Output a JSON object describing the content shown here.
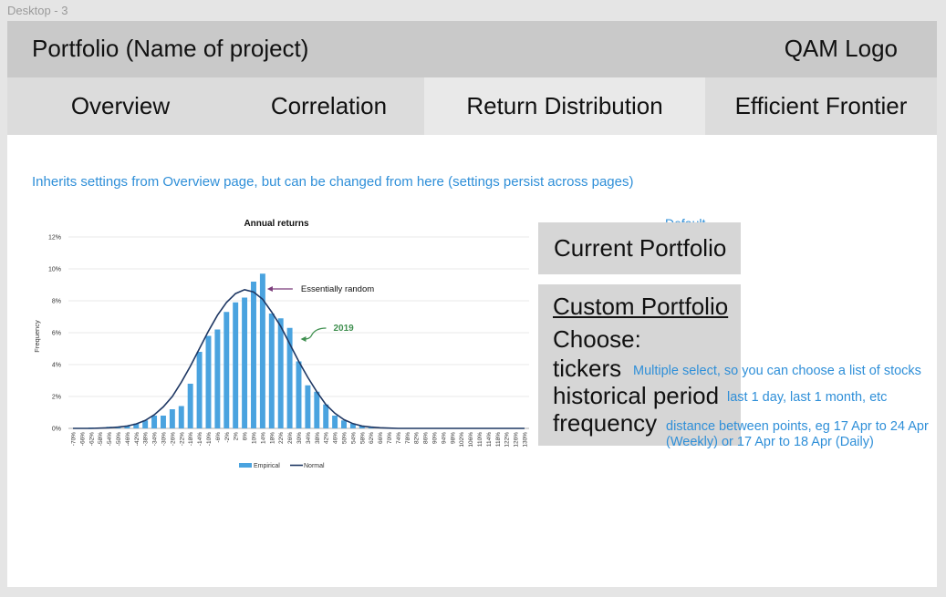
{
  "desktop_label": "Desktop - 3",
  "header": {
    "title": "Portfolio (Name of project)",
    "logo": "QAM Logo"
  },
  "tabs": [
    {
      "label": "Overview",
      "active": false
    },
    {
      "label": "Correlation",
      "active": false
    },
    {
      "label": "Return Distribution",
      "active": true
    },
    {
      "label": "Efficient Frontier",
      "active": false
    }
  ],
  "settings_note": "Inherits settings from Overview page, but can be changed from here (settings persist across pages)",
  "portfolio": {
    "default_note": "Default",
    "current_label": "Current Portfolio",
    "custom_title": "Custom Portfolio",
    "choose_label": "Choose:",
    "options": [
      {
        "label": "tickers",
        "hint": "Multiple select, so you can choose a list of stocks"
      },
      {
        "label": "historical period",
        "hint": "last 1 day, last 1 month, etc"
      },
      {
        "label": "frequency",
        "hint": "distance between points, eg 17 Apr to 24 Apr (Weekly) or 17 Apr to 18 Apr (Daily)"
      }
    ]
  },
  "colors": {
    "accent": "#2f8fd8",
    "bar": "#4aa3df",
    "normal_line": "#1f3864",
    "arrow1": "#7a3b7a",
    "arrow2": "#3f8f4f"
  },
  "chart_data": {
    "type": "bar",
    "title": "Annual returns",
    "ylabel": "Frequency",
    "ylim": [
      0,
      12
    ],
    "yticks": [
      "0%",
      "2%",
      "4%",
      "6%",
      "8%",
      "10%",
      "12%"
    ],
    "categories": [
      "-70%",
      "-66%",
      "-62%",
      "-58%",
      "-54%",
      "-50%",
      "-46%",
      "-42%",
      "-38%",
      "-34%",
      "-30%",
      "-26%",
      "-22%",
      "-18%",
      "-14%",
      "-10%",
      "-6%",
      "-2%",
      "2%",
      "6%",
      "10%",
      "14%",
      "18%",
      "22%",
      "26%",
      "30%",
      "34%",
      "38%",
      "42%",
      "46%",
      "50%",
      "54%",
      "58%",
      "62%",
      "66%",
      "70%",
      "74%",
      "78%",
      "82%",
      "86%",
      "90%",
      "94%",
      "98%",
      "102%",
      "106%",
      "110%",
      "114%",
      "118%",
      "122%",
      "126%",
      "130%"
    ],
    "series": [
      {
        "name": "Empirical",
        "type": "bar",
        "values": [
          0,
          0,
          0.05,
          0.05,
          0.1,
          0.1,
          0.15,
          0.3,
          0.5,
          0.8,
          0.8,
          1.2,
          1.4,
          2.8,
          4.8,
          5.8,
          6.2,
          7.3,
          7.9,
          8.2,
          9.2,
          9.7,
          7.2,
          6.9,
          6.3,
          4.2,
          2.7,
          2.3,
          1.5,
          0.8,
          0.5,
          0.3,
          0.15,
          0.1,
          0.05,
          0.05,
          0,
          0,
          0,
          0,
          0,
          0,
          0,
          0,
          0,
          0,
          0,
          0,
          0,
          0,
          0
        ]
      },
      {
        "name": "Normal",
        "type": "line",
        "values": [
          0,
          0,
          0,
          0.02,
          0.04,
          0.08,
          0.15,
          0.28,
          0.5,
          0.85,
          1.35,
          2.0,
          2.9,
          3.9,
          5.0,
          6.1,
          7.1,
          7.9,
          8.45,
          8.7,
          8.55,
          8.1,
          7.3,
          6.4,
          5.3,
          4.2,
          3.2,
          2.3,
          1.5,
          0.95,
          0.55,
          0.3,
          0.15,
          0.08,
          0.04,
          0.02,
          0,
          0,
          0,
          0,
          0,
          0,
          0,
          0,
          0,
          0,
          0,
          0,
          0,
          0,
          0
        ]
      }
    ],
    "annotations": [
      {
        "text": "Essentially random",
        "category": "14%"
      },
      {
        "text": "2019",
        "category": "30%"
      }
    ]
  }
}
